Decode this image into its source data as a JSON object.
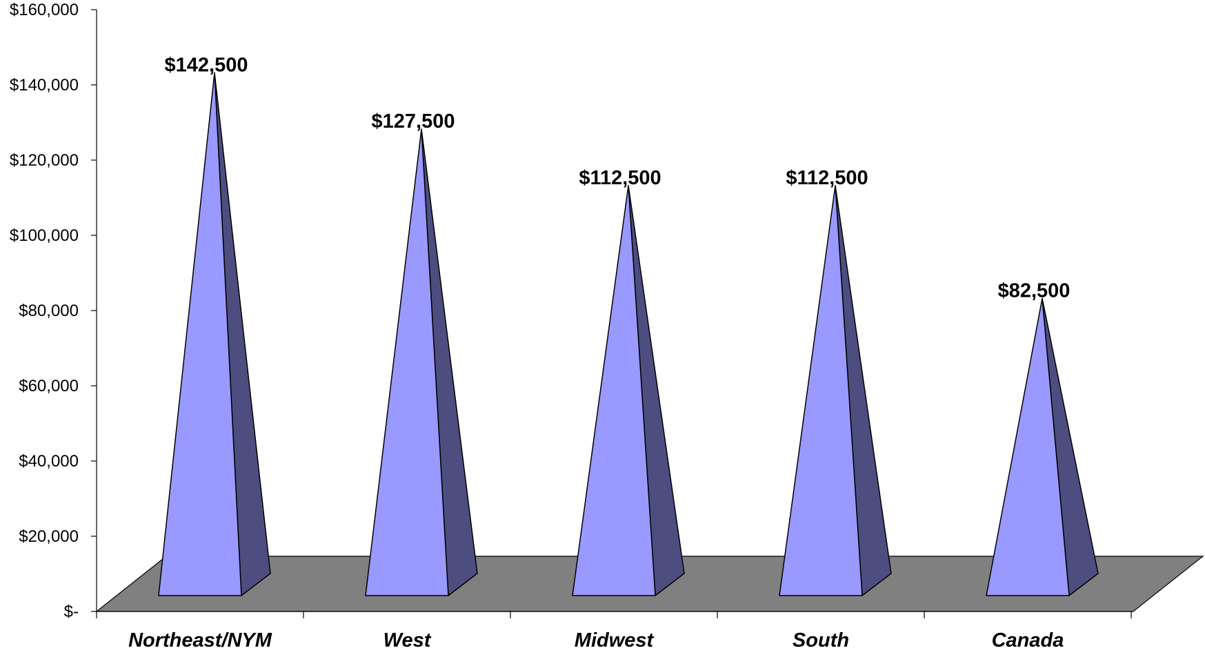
{
  "chart_data": {
    "type": "bar",
    "style": "3d-pyramid",
    "categories": [
      "Northeast/NYM",
      "West",
      "Midwest",
      "South",
      "Canada"
    ],
    "values": [
      142500,
      127500,
      112500,
      112500,
      82500
    ],
    "value_labels": [
      "$142,500",
      "$127,500",
      "$112,500",
      "$112,500",
      "$82,500"
    ],
    "y_tick_values": [
      0,
      20000,
      40000,
      60000,
      80000,
      100000,
      120000,
      140000,
      160000
    ],
    "y_tick_labels": [
      "$-",
      "$20,000",
      "$40,000",
      "$60,000",
      "$80,000",
      "$100,000",
      "$120,000",
      "$140,000",
      "$160,000"
    ],
    "ylim": [
      0,
      160000
    ],
    "title": "",
    "xlabel": "",
    "ylabel": "",
    "grid": false,
    "colors": {
      "front_face": "#9999ff",
      "side_face": "#4d4d80",
      "floor": "#808080",
      "outline": "#000000"
    }
  }
}
